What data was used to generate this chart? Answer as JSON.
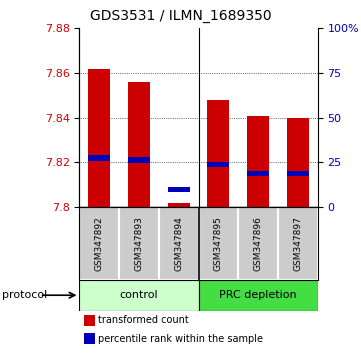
{
  "title": "GDS3531 / ILMN_1689350",
  "samples": [
    "GSM347892",
    "GSM347893",
    "GSM347894",
    "GSM347895",
    "GSM347896",
    "GSM347897"
  ],
  "red_values": [
    7.862,
    7.856,
    7.802,
    7.848,
    7.841,
    7.84
  ],
  "blue_values": [
    7.822,
    7.821,
    7.808,
    7.819,
    7.815,
    7.815
  ],
  "y_min": 7.8,
  "y_max": 7.88,
  "y_ticks_left": [
    7.8,
    7.82,
    7.84,
    7.86,
    7.88
  ],
  "y_ticks_right_labels": [
    "0",
    "25",
    "50",
    "75",
    "100%"
  ],
  "bar_width": 0.55,
  "red_color": "#cc0000",
  "blue_color": "#0000bb",
  "control_color": "#ccffcc",
  "prc_color": "#44dd44",
  "sample_bg_color": "#cccccc",
  "legend_red": "transformed count",
  "legend_blue": "percentile rank within the sample",
  "protocol_label": "protocol"
}
